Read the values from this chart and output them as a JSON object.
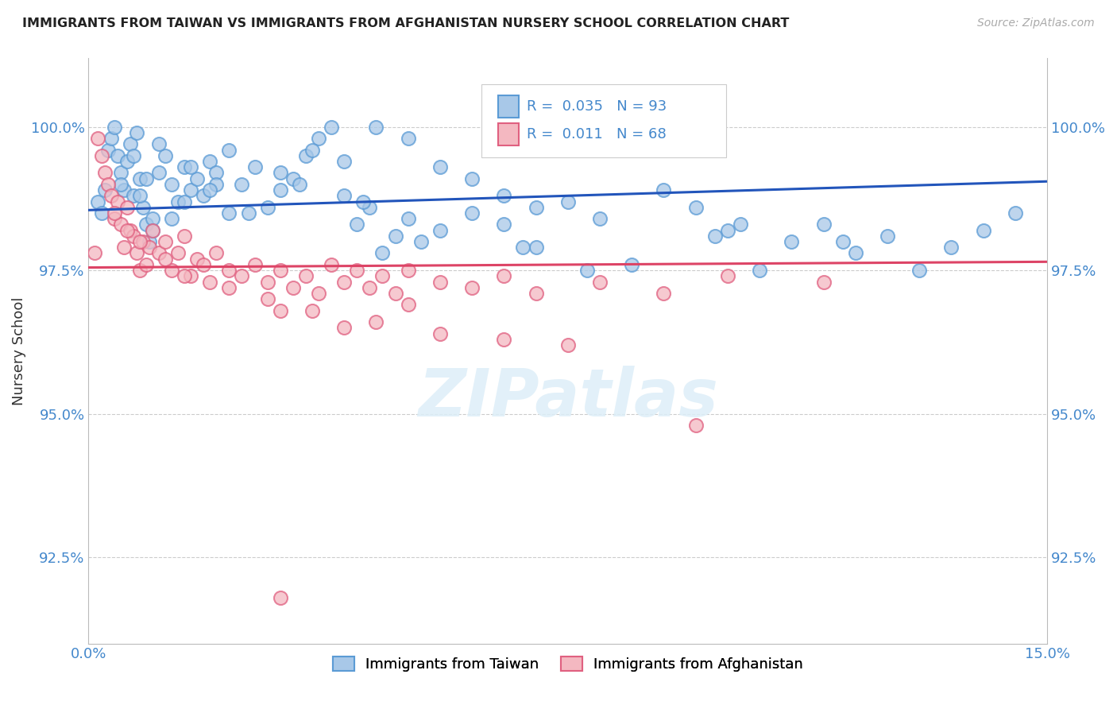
{
  "title": "IMMIGRANTS FROM TAIWAN VS IMMIGRANTS FROM AFGHANISTAN NURSERY SCHOOL CORRELATION CHART",
  "source": "Source: ZipAtlas.com",
  "ylabel": "Nursery School",
  "ytick_labels": [
    "92.5%",
    "95.0%",
    "97.5%",
    "100.0%"
  ],
  "ytick_values": [
    92.5,
    95.0,
    97.5,
    100.0
  ],
  "xmin": 0.0,
  "xmax": 15.0,
  "ymin": 91.0,
  "ymax": 101.2,
  "taiwan_color": "#a8c8e8",
  "taiwan_edge_color": "#5b9bd5",
  "afghanistan_color": "#f4b8c1",
  "afghanistan_edge_color": "#e06080",
  "taiwan_line_color": "#2255bb",
  "afghanistan_line_color": "#dd4466",
  "taiwan_trendline_x": [
    0.0,
    15.0
  ],
  "taiwan_trendline_y": [
    98.55,
    99.05
  ],
  "afghanistan_trendline_x": [
    0.0,
    15.0
  ],
  "afghanistan_trendline_y": [
    97.55,
    97.65
  ],
  "taiwan_scatter_x": [
    0.15,
    0.2,
    0.25,
    0.3,
    0.35,
    0.4,
    0.45,
    0.5,
    0.55,
    0.6,
    0.65,
    0.7,
    0.75,
    0.8,
    0.85,
    0.9,
    0.95,
    1.0,
    1.1,
    1.2,
    1.3,
    1.4,
    1.5,
    1.6,
    1.7,
    1.8,
    1.9,
    2.0,
    2.2,
    2.4,
    2.6,
    2.8,
    3.0,
    3.2,
    3.4,
    3.6,
    3.8,
    4.0,
    4.2,
    4.4,
    4.6,
    4.8,
    5.0,
    5.5,
    6.0,
    6.5,
    7.0,
    7.5,
    8.0,
    9.0,
    9.5,
    10.0,
    10.5,
    11.0,
    11.5,
    12.0,
    12.5,
    13.0,
    13.5,
    14.0,
    14.5,
    4.3,
    5.2,
    6.8,
    7.8,
    8.5,
    9.8,
    10.2,
    11.8,
    0.5,
    1.0,
    1.5,
    2.0,
    2.5,
    3.0,
    3.5,
    4.0,
    4.5,
    5.0,
    5.5,
    6.0,
    6.5,
    7.0,
    0.7,
    0.8,
    0.9,
    1.1,
    1.3,
    1.6,
    1.9,
    2.2,
    3.3
  ],
  "taiwan_scatter_y": [
    98.7,
    98.5,
    98.9,
    99.6,
    99.8,
    100.0,
    99.5,
    99.2,
    98.9,
    99.4,
    99.7,
    98.8,
    99.9,
    99.1,
    98.6,
    98.3,
    98.0,
    98.4,
    99.2,
    99.5,
    99.0,
    98.7,
    99.3,
    98.9,
    99.1,
    98.8,
    99.4,
    99.2,
    98.5,
    99.0,
    99.3,
    98.6,
    98.9,
    99.1,
    99.5,
    99.8,
    100.0,
    98.8,
    98.3,
    98.6,
    97.8,
    98.1,
    98.4,
    98.2,
    98.5,
    98.3,
    97.9,
    98.7,
    98.4,
    98.9,
    98.6,
    98.2,
    97.5,
    98.0,
    98.3,
    97.8,
    98.1,
    97.5,
    97.9,
    98.2,
    98.5,
    98.7,
    98.0,
    97.9,
    97.5,
    97.6,
    98.1,
    98.3,
    98.0,
    99.0,
    98.2,
    98.7,
    99.0,
    98.5,
    99.2,
    99.6,
    99.4,
    100.0,
    99.8,
    99.3,
    99.1,
    98.8,
    98.6,
    99.5,
    98.8,
    99.1,
    99.7,
    98.4,
    99.3,
    98.9,
    99.6,
    99.0
  ],
  "afghanistan_scatter_x": [
    0.1,
    0.15,
    0.2,
    0.25,
    0.3,
    0.35,
    0.4,
    0.45,
    0.5,
    0.55,
    0.6,
    0.65,
    0.7,
    0.75,
    0.8,
    0.85,
    0.9,
    0.95,
    1.0,
    1.1,
    1.2,
    1.3,
    1.4,
    1.5,
    1.6,
    1.7,
    1.8,
    1.9,
    2.0,
    2.2,
    2.4,
    2.6,
    2.8,
    3.0,
    3.2,
    3.4,
    3.6,
    3.8,
    4.0,
    4.2,
    4.4,
    4.6,
    4.8,
    5.0,
    5.5,
    6.0,
    6.5,
    7.0,
    8.0,
    9.0,
    10.0,
    3.0,
    4.0,
    5.0,
    0.4,
    0.6,
    0.8,
    1.2,
    1.5,
    2.2,
    2.8,
    3.5,
    4.5,
    5.5,
    6.5,
    7.5,
    9.5,
    11.5
  ],
  "afghanistan_scatter_y": [
    97.8,
    99.8,
    99.5,
    99.2,
    99.0,
    98.8,
    98.4,
    98.7,
    98.3,
    97.9,
    98.6,
    98.2,
    98.1,
    97.8,
    97.5,
    98.0,
    97.6,
    97.9,
    98.2,
    97.8,
    98.0,
    97.5,
    97.8,
    98.1,
    97.4,
    97.7,
    97.6,
    97.3,
    97.8,
    97.5,
    97.4,
    97.6,
    97.3,
    97.5,
    97.2,
    97.4,
    97.1,
    97.6,
    97.3,
    97.5,
    97.2,
    97.4,
    97.1,
    97.5,
    97.3,
    97.2,
    97.4,
    97.1,
    97.3,
    97.1,
    97.4,
    96.8,
    96.5,
    96.9,
    98.5,
    98.2,
    98.0,
    97.7,
    97.4,
    97.2,
    97.0,
    96.8,
    96.6,
    96.4,
    96.3,
    96.2,
    94.8,
    97.3
  ],
  "afghanistan_outlier_x": [
    3.0
  ],
  "afghanistan_outlier_y": [
    91.8
  ],
  "watermark": "ZIPatlas",
  "background_color": "#ffffff",
  "grid_color": "#cccccc"
}
